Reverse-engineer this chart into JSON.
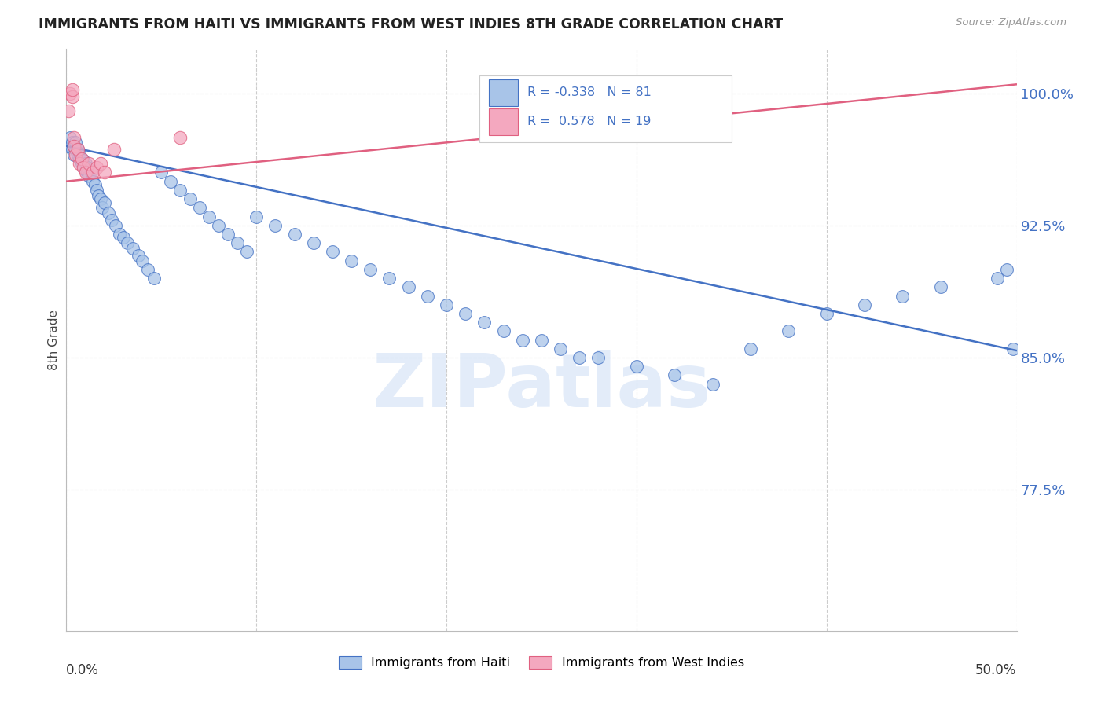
{
  "title": "IMMIGRANTS FROM HAITI VS IMMIGRANTS FROM WEST INDIES 8TH GRADE CORRELATION CHART",
  "source": "Source: ZipAtlas.com",
  "ylabel": "8th Grade",
  "ytick_labels": [
    "100.0%",
    "92.5%",
    "85.0%",
    "77.5%"
  ],
  "ytick_values": [
    1.0,
    0.925,
    0.85,
    0.775
  ],
  "xlim": [
    0.0,
    0.5
  ],
  "ylim": [
    0.695,
    1.025
  ],
  "legend_haiti": "Immigrants from Haiti",
  "legend_westindies": "Immigrants from West Indies",
  "R_haiti": -0.338,
  "N_haiti": 81,
  "R_westindies": 0.578,
  "N_westindies": 19,
  "haiti_color": "#a8c4e8",
  "westindies_color": "#f4a8bf",
  "haiti_line_color": "#4472c4",
  "westindies_line_color": "#e06080",
  "watermark": "ZIPatlas",
  "haiti_x": [
    0.001,
    0.002,
    0.003,
    0.003,
    0.004,
    0.004,
    0.005,
    0.005,
    0.006,
    0.006,
    0.007,
    0.007,
    0.008,
    0.008,
    0.009,
    0.009,
    0.01,
    0.01,
    0.011,
    0.011,
    0.012,
    0.013,
    0.014,
    0.015,
    0.016,
    0.017,
    0.018,
    0.019,
    0.02,
    0.022,
    0.024,
    0.026,
    0.028,
    0.03,
    0.032,
    0.035,
    0.038,
    0.04,
    0.043,
    0.046,
    0.05,
    0.055,
    0.06,
    0.065,
    0.07,
    0.075,
    0.08,
    0.085,
    0.09,
    0.095,
    0.1,
    0.11,
    0.12,
    0.13,
    0.14,
    0.15,
    0.16,
    0.17,
    0.18,
    0.19,
    0.2,
    0.21,
    0.22,
    0.23,
    0.24,
    0.25,
    0.26,
    0.27,
    0.28,
    0.3,
    0.32,
    0.34,
    0.36,
    0.38,
    0.4,
    0.42,
    0.44,
    0.46,
    0.49,
    0.495,
    0.498
  ],
  "haiti_y": [
    0.97,
    0.975,
    0.968,
    0.972,
    0.965,
    0.97,
    0.968,
    0.972,
    0.965,
    0.968,
    0.963,
    0.966,
    0.96,
    0.963,
    0.958,
    0.962,
    0.956,
    0.96,
    0.955,
    0.958,
    0.953,
    0.955,
    0.95,
    0.948,
    0.945,
    0.942,
    0.94,
    0.935,
    0.938,
    0.932,
    0.928,
    0.925,
    0.92,
    0.918,
    0.915,
    0.912,
    0.908,
    0.905,
    0.9,
    0.895,
    0.955,
    0.95,
    0.945,
    0.94,
    0.935,
    0.93,
    0.925,
    0.92,
    0.915,
    0.91,
    0.93,
    0.925,
    0.92,
    0.915,
    0.91,
    0.905,
    0.9,
    0.895,
    0.89,
    0.885,
    0.88,
    0.875,
    0.87,
    0.865,
    0.86,
    0.86,
    0.855,
    0.85,
    0.85,
    0.845,
    0.84,
    0.835,
    0.855,
    0.865,
    0.875,
    0.88,
    0.885,
    0.89,
    0.895,
    0.9,
    0.855
  ],
  "westindies_x": [
    0.001,
    0.002,
    0.003,
    0.003,
    0.004,
    0.004,
    0.005,
    0.006,
    0.007,
    0.008,
    0.009,
    0.01,
    0.012,
    0.014,
    0.016,
    0.018,
    0.02,
    0.025,
    0.06
  ],
  "westindies_y": [
    0.99,
    1.0,
    0.998,
    1.002,
    0.975,
    0.97,
    0.965,
    0.968,
    0.96,
    0.963,
    0.958,
    0.955,
    0.96,
    0.955,
    0.958,
    0.96,
    0.955,
    0.968,
    0.975
  ],
  "blue_line_x0": 0.0,
  "blue_line_y0": 0.97,
  "blue_line_x1": 0.5,
  "blue_line_y1": 0.854,
  "pink_line_x0": 0.0,
  "pink_line_y0": 0.95,
  "pink_line_x1": 0.5,
  "pink_line_y1": 1.005
}
